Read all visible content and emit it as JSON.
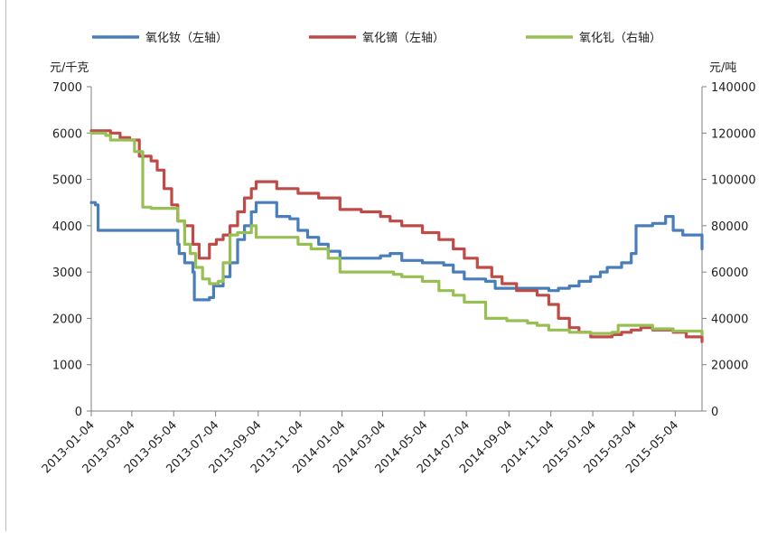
{
  "chart_data": {
    "type": "line",
    "title": "",
    "left_axis": {
      "unit": "元/千克",
      "range": [
        0,
        7000
      ],
      "ticks": [
        "0",
        "1000",
        "2000",
        "3000",
        "4000",
        "5000",
        "6000",
        "7000"
      ],
      "tick_values": [
        0,
        1000,
        2000,
        3000,
        4000,
        5000,
        6000,
        7000
      ]
    },
    "right_axis": {
      "unit": "元/吨",
      "range": [
        0,
        140000
      ],
      "ticks": [
        "0",
        "20000",
        "40000",
        "60000",
        "80000",
        "100000",
        "120000",
        "140000"
      ],
      "tick_values": [
        0,
        20000,
        40000,
        60000,
        80000,
        100000,
        120000,
        140000
      ]
    },
    "x_axis": {
      "range": [
        "2013-01-04",
        "2015-06-12"
      ],
      "ticks": [
        "2013-01-04",
        "2013-03-04",
        "2013-05-04",
        "2013-07-04",
        "2013-09-04",
        "2013-11-04",
        "2014-01-04",
        "2014-03-04",
        "2014-05-04",
        "2014-07-04",
        "2014-09-04",
        "2014-11-04",
        "2015-01-04",
        "2015-03-04",
        "2015-05-04"
      ]
    },
    "grid": false,
    "legend": "top",
    "series": [
      {
        "name": "氧化钕（左轴）",
        "axis": "left",
        "color": "#4a7ebb",
        "x": [
          "2013-01-04",
          "2013-01-10",
          "2013-01-14",
          "2013-02-15",
          "2013-03-15",
          "2013-04-15",
          "2013-05-01",
          "2013-05-10",
          "2013-05-12",
          "2013-05-20",
          "2013-05-25",
          "2013-06-01",
          "2013-06-03",
          "2013-06-15",
          "2013-06-25",
          "2013-07-01",
          "2013-07-15",
          "2013-07-25",
          "2013-08-05",
          "2013-08-15",
          "2013-08-25",
          "2013-09-01",
          "2013-10-01",
          "2013-10-20",
          "2013-11-01",
          "2013-11-15",
          "2013-12-01",
          "2013-12-15",
          "2014-01-01",
          "2014-02-15",
          "2014-03-01",
          "2014-03-15",
          "2014-04-01",
          "2014-05-01",
          "2014-06-01",
          "2014-06-15",
          "2014-07-01",
          "2014-08-01",
          "2014-08-15",
          "2014-09-15",
          "2014-10-15",
          "2014-11-01",
          "2014-11-15",
          "2014-12-01",
          "2014-12-15",
          "2015-01-01",
          "2015-01-15",
          "2015-01-25",
          "2015-02-01",
          "2015-02-15",
          "2015-03-01",
          "2015-03-08",
          "2015-03-20",
          "2015-04-01",
          "2015-04-20",
          "2015-05-01",
          "2015-05-15",
          "2015-06-12"
        ],
        "y": [
          4500,
          4450,
          3900,
          3900,
          3900,
          3900,
          3900,
          3600,
          3400,
          3200,
          3200,
          3000,
          2400,
          2400,
          2450,
          2700,
          2900,
          3200,
          3700,
          4000,
          4300,
          4500,
          4200,
          4150,
          3900,
          3750,
          3600,
          3450,
          3300,
          3300,
          3350,
          3400,
          3250,
          3200,
          3150,
          3000,
          2850,
          2800,
          2650,
          2650,
          2650,
          2600,
          2650,
          2700,
          2800,
          2900,
          3000,
          3100,
          3100,
          3200,
          3400,
          4000,
          4000,
          4050,
          4200,
          3900,
          3800,
          3500
        ]
      },
      {
        "name": "氧化镝（左轴）",
        "axis": "left",
        "color": "#be4b48",
        "x": [
          "2013-01-04",
          "2013-02-01",
          "2013-02-15",
          "2013-03-01",
          "2013-03-15",
          "2013-04-01",
          "2013-04-10",
          "2013-04-20",
          "2013-05-01",
          "2013-05-10",
          "2013-05-20",
          "2013-06-01",
          "2013-06-10",
          "2013-06-20",
          "2013-06-25",
          "2013-07-05",
          "2013-07-15",
          "2013-07-25",
          "2013-08-05",
          "2013-08-15",
          "2013-08-25",
          "2013-09-01",
          "2013-10-01",
          "2013-11-01",
          "2013-12-01",
          "2014-01-01",
          "2014-02-01",
          "2014-03-01",
          "2014-03-15",
          "2014-04-01",
          "2014-05-01",
          "2014-05-25",
          "2014-06-15",
          "2014-07-01",
          "2014-07-20",
          "2014-08-10",
          "2014-08-25",
          "2014-09-15",
          "2014-10-15",
          "2014-11-01",
          "2014-11-15",
          "2014-12-01",
          "2014-12-15",
          "2015-01-01",
          "2015-02-01",
          "2015-02-15",
          "2015-03-01",
          "2015-03-15",
          "2015-04-01",
          "2015-05-01",
          "2015-05-20",
          "2015-06-12"
        ],
        "y": [
          6050,
          6000,
          5900,
          5850,
          5500,
          5400,
          5200,
          4800,
          4450,
          4100,
          4000,
          3600,
          3300,
          3300,
          3600,
          3700,
          3800,
          4000,
          4300,
          4600,
          4800,
          4950,
          4800,
          4700,
          4600,
          4350,
          4300,
          4200,
          4100,
          4000,
          3850,
          3700,
          3500,
          3300,
          3100,
          2900,
          2750,
          2600,
          2500,
          2300,
          2000,
          1800,
          1700,
          1600,
          1650,
          1700,
          1750,
          1800,
          1750,
          1700,
          1600,
          1500
        ]
      },
      {
        "name": "氧化钆（右轴）",
        "axis": "right",
        "color": "#98bf53",
        "x": [
          "2013-01-04",
          "2013-01-25",
          "2013-02-01",
          "2013-03-01",
          "2013-03-08",
          "2013-03-20",
          "2013-04-01",
          "2013-05-01",
          "2013-05-10",
          "2013-05-20",
          "2013-05-28",
          "2013-06-05",
          "2013-06-15",
          "2013-06-25",
          "2013-07-01",
          "2013-07-08",
          "2013-07-15",
          "2013-07-25",
          "2013-08-05",
          "2013-08-15",
          "2013-08-25",
          "2013-09-01",
          "2013-10-01",
          "2013-10-25",
          "2013-11-01",
          "2013-11-20",
          "2013-12-15",
          "2014-01-01",
          "2014-03-01",
          "2014-03-20",
          "2014-04-01",
          "2014-05-01",
          "2014-05-25",
          "2014-06-15",
          "2014-07-01",
          "2014-08-01",
          "2014-09-01",
          "2014-10-01",
          "2014-10-15",
          "2014-11-01",
          "2014-12-01",
          "2015-01-01",
          "2015-02-01",
          "2015-02-10",
          "2015-03-01",
          "2015-04-01",
          "2015-05-01",
          "2015-06-12"
        ],
        "y": [
          120000,
          119000,
          117000,
          117000,
          112000,
          88000,
          87500,
          87500,
          82000,
          72000,
          68000,
          62000,
          57000,
          55000,
          55000,
          56000,
          64000,
          76000,
          77000,
          77000,
          80000,
          75000,
          75000,
          75000,
          72000,
          70000,
          66000,
          60000,
          60000,
          59000,
          58000,
          56000,
          52000,
          50000,
          47000,
          40000,
          39000,
          38000,
          37000,
          35000,
          34000,
          33500,
          34000,
          37000,
          37000,
          35500,
          34500,
          33000
        ]
      }
    ]
  }
}
